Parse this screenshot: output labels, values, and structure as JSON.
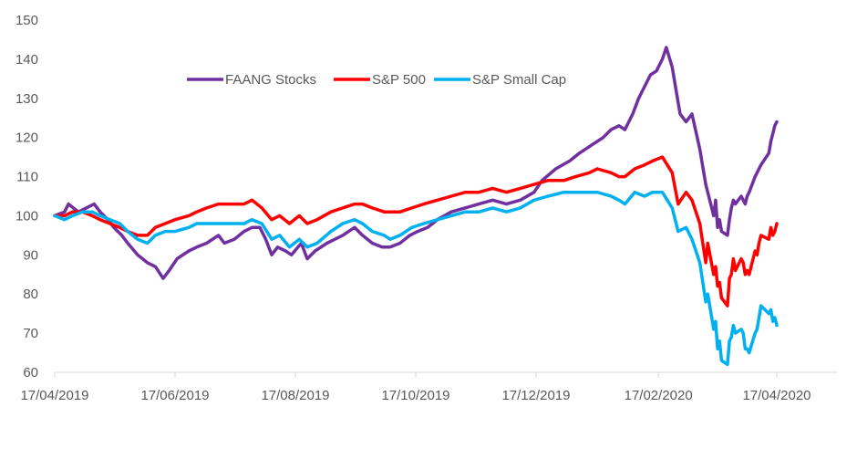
{
  "chart_data": {
    "type": "line",
    "title": "",
    "xlabel": "",
    "ylabel": "",
    "ylim": [
      60,
      150
    ],
    "y_ticks": [
      60,
      70,
      80,
      90,
      100,
      110,
      120,
      130,
      140,
      150
    ],
    "x_ticks": [
      "17/04/2019",
      "17/06/2019",
      "17/08/2019",
      "17/10/2019",
      "17/12/2019",
      "17/02/2020",
      "17/04/2020"
    ],
    "x_range": [
      "2019-04-17",
      "2020-04-30"
    ],
    "grid": false,
    "legend_position": "top-center",
    "series": [
      {
        "name": "FAANG Stocks",
        "color": "#7030A0",
        "points": [
          [
            "2019-04-17",
            100
          ],
          [
            "2019-04-22",
            101
          ],
          [
            "2019-04-24",
            103
          ],
          [
            "2019-04-29",
            101
          ],
          [
            "2019-05-03",
            102
          ],
          [
            "2019-05-07",
            103
          ],
          [
            "2019-05-10",
            101
          ],
          [
            "2019-05-14",
            99
          ],
          [
            "2019-05-17",
            97
          ],
          [
            "2019-05-21",
            95
          ],
          [
            "2019-05-24",
            93
          ],
          [
            "2019-05-29",
            90
          ],
          [
            "2019-06-03",
            88
          ],
          [
            "2019-06-07",
            87
          ],
          [
            "2019-06-11",
            84
          ],
          [
            "2019-06-14",
            86
          ],
          [
            "2019-06-18",
            89
          ],
          [
            "2019-06-24",
            91
          ],
          [
            "2019-06-28",
            92
          ],
          [
            "2019-07-03",
            93
          ],
          [
            "2019-07-09",
            95
          ],
          [
            "2019-07-12",
            93
          ],
          [
            "2019-07-17",
            94
          ],
          [
            "2019-07-22",
            96
          ],
          [
            "2019-07-26",
            97
          ],
          [
            "2019-07-30",
            97
          ],
          [
            "2019-08-02",
            94
          ],
          [
            "2019-08-05",
            90
          ],
          [
            "2019-08-08",
            92
          ],
          [
            "2019-08-12",
            91
          ],
          [
            "2019-08-15",
            90
          ],
          [
            "2019-08-20",
            93
          ],
          [
            "2019-08-23",
            89
          ],
          [
            "2019-08-27",
            91
          ],
          [
            "2019-09-02",
            93
          ],
          [
            "2019-09-06",
            94
          ],
          [
            "2019-09-10",
            95
          ],
          [
            "2019-09-16",
            97
          ],
          [
            "2019-09-20",
            95
          ],
          [
            "2019-09-25",
            93
          ],
          [
            "2019-09-30",
            92
          ],
          [
            "2019-10-04",
            92
          ],
          [
            "2019-10-09",
            93
          ],
          [
            "2019-10-14",
            95
          ],
          [
            "2019-10-18",
            96
          ],
          [
            "2019-10-23",
            97
          ],
          [
            "2019-10-28",
            99
          ],
          [
            "2019-11-04",
            101
          ],
          [
            "2019-11-11",
            102
          ],
          [
            "2019-11-18",
            103
          ],
          [
            "2019-11-25",
            104
          ],
          [
            "2019-12-02",
            103
          ],
          [
            "2019-12-09",
            104
          ],
          [
            "2019-12-16",
            106
          ],
          [
            "2019-12-20",
            109
          ],
          [
            "2019-12-27",
            112
          ],
          [
            "2020-01-03",
            114
          ],
          [
            "2020-01-08",
            116
          ],
          [
            "2020-01-14",
            118
          ],
          [
            "2020-01-20",
            120
          ],
          [
            "2020-01-24",
            122
          ],
          [
            "2020-01-28",
            123
          ],
          [
            "2020-01-31",
            122
          ],
          [
            "2020-02-04",
            126
          ],
          [
            "2020-02-07",
            130
          ],
          [
            "2020-02-10",
            133
          ],
          [
            "2020-02-13",
            136
          ],
          [
            "2020-02-16",
            137
          ],
          [
            "2020-02-19",
            140
          ],
          [
            "2020-02-21",
            143
          ],
          [
            "2020-02-24",
            138
          ],
          [
            "2020-02-26",
            132
          ],
          [
            "2020-02-28",
            126
          ],
          [
            "2020-03-02",
            124
          ],
          [
            "2020-03-05",
            126
          ],
          [
            "2020-03-09",
            117
          ],
          [
            "2020-03-12",
            108
          ],
          [
            "2020-03-16",
            100
          ],
          [
            "2020-03-17",
            104
          ],
          [
            "2020-03-18",
            97
          ],
          [
            "2020-03-19",
            99
          ],
          [
            "2020-03-20",
            96
          ],
          [
            "2020-03-23",
            95
          ],
          [
            "2020-03-24",
            99
          ],
          [
            "2020-03-25",
            102
          ],
          [
            "2020-03-26",
            104
          ],
          [
            "2020-03-27",
            103
          ],
          [
            "2020-03-30",
            105
          ],
          [
            "2020-03-31",
            104
          ],
          [
            "2020-04-01",
            103
          ],
          [
            "2020-04-02",
            105
          ],
          [
            "2020-04-03",
            106
          ],
          [
            "2020-04-06",
            110
          ],
          [
            "2020-04-07",
            111
          ],
          [
            "2020-04-08",
            112
          ],
          [
            "2020-04-09",
            113
          ],
          [
            "2020-04-13",
            116
          ],
          [
            "2020-04-14",
            119
          ],
          [
            "2020-04-15",
            121
          ],
          [
            "2020-04-16",
            123
          ],
          [
            "2020-04-17",
            124
          ]
        ]
      },
      {
        "name": "S&P 500",
        "color": "#FF0000",
        "points": [
          [
            "2019-04-17",
            100
          ],
          [
            "2019-04-22",
            100
          ],
          [
            "2019-04-26",
            101
          ],
          [
            "2019-05-01",
            101
          ],
          [
            "2019-05-06",
            100
          ],
          [
            "2019-05-10",
            99
          ],
          [
            "2019-05-15",
            98
          ],
          [
            "2019-05-20",
            97
          ],
          [
            "2019-05-24",
            96
          ],
          [
            "2019-05-29",
            95
          ],
          [
            "2019-06-03",
            95
          ],
          [
            "2019-06-07",
            97
          ],
          [
            "2019-06-12",
            98
          ],
          [
            "2019-06-17",
            99
          ],
          [
            "2019-06-24",
            100
          ],
          [
            "2019-06-28",
            101
          ],
          [
            "2019-07-03",
            102
          ],
          [
            "2019-07-09",
            103
          ],
          [
            "2019-07-15",
            103
          ],
          [
            "2019-07-22",
            103
          ],
          [
            "2019-07-26",
            104
          ],
          [
            "2019-07-31",
            102
          ],
          [
            "2019-08-05",
            99
          ],
          [
            "2019-08-09",
            100
          ],
          [
            "2019-08-14",
            98
          ],
          [
            "2019-08-19",
            100
          ],
          [
            "2019-08-23",
            98
          ],
          [
            "2019-08-28",
            99
          ],
          [
            "2019-09-04",
            101
          ],
          [
            "2019-09-10",
            102
          ],
          [
            "2019-09-16",
            103
          ],
          [
            "2019-09-20",
            103
          ],
          [
            "2019-09-25",
            102
          ],
          [
            "2019-10-01",
            101
          ],
          [
            "2019-10-04",
            101
          ],
          [
            "2019-10-09",
            101
          ],
          [
            "2019-10-15",
            102
          ],
          [
            "2019-10-21",
            103
          ],
          [
            "2019-10-28",
            104
          ],
          [
            "2019-11-04",
            105
          ],
          [
            "2019-11-11",
            106
          ],
          [
            "2019-11-18",
            106
          ],
          [
            "2019-11-25",
            107
          ],
          [
            "2019-12-02",
            106
          ],
          [
            "2019-12-09",
            107
          ],
          [
            "2019-12-16",
            108
          ],
          [
            "2019-12-23",
            109
          ],
          [
            "2019-12-31",
            109
          ],
          [
            "2020-01-06",
            110
          ],
          [
            "2020-01-13",
            111
          ],
          [
            "2020-01-17",
            112
          ],
          [
            "2020-01-24",
            111
          ],
          [
            "2020-01-28",
            110
          ],
          [
            "2020-01-31",
            110
          ],
          [
            "2020-02-05",
            112
          ],
          [
            "2020-02-10",
            113
          ],
          [
            "2020-02-14",
            114
          ],
          [
            "2020-02-19",
            115
          ],
          [
            "2020-02-24",
            111
          ],
          [
            "2020-02-27",
            103
          ],
          [
            "2020-03-02",
            106
          ],
          [
            "2020-03-05",
            104
          ],
          [
            "2020-03-09",
            98
          ],
          [
            "2020-03-12",
            88
          ],
          [
            "2020-03-13",
            93
          ],
          [
            "2020-03-16",
            85
          ],
          [
            "2020-03-17",
            87
          ],
          [
            "2020-03-18",
            82
          ],
          [
            "2020-03-19",
            83
          ],
          [
            "2020-03-20",
            79
          ],
          [
            "2020-03-23",
            77
          ],
          [
            "2020-03-24",
            84
          ],
          [
            "2020-03-25",
            85
          ],
          [
            "2020-03-26",
            89
          ],
          [
            "2020-03-27",
            86
          ],
          [
            "2020-03-30",
            89
          ],
          [
            "2020-03-31",
            88
          ],
          [
            "2020-04-01",
            85
          ],
          [
            "2020-04-02",
            86
          ],
          [
            "2020-04-03",
            85
          ],
          [
            "2020-04-06",
            91
          ],
          [
            "2020-04-07",
            90
          ],
          [
            "2020-04-08",
            93
          ],
          [
            "2020-04-09",
            95
          ],
          [
            "2020-04-13",
            94
          ],
          [
            "2020-04-14",
            97
          ],
          [
            "2020-04-15",
            95
          ],
          [
            "2020-04-16",
            96
          ],
          [
            "2020-04-17",
            98
          ]
        ]
      },
      {
        "name": "S&P Small Cap",
        "color": "#00B0F0",
        "points": [
          [
            "2019-04-17",
            100
          ],
          [
            "2019-04-22",
            99
          ],
          [
            "2019-04-26",
            100
          ],
          [
            "2019-05-01",
            101
          ],
          [
            "2019-05-06",
            101
          ],
          [
            "2019-05-10",
            100
          ],
          [
            "2019-05-15",
            99
          ],
          [
            "2019-05-20",
            98
          ],
          [
            "2019-05-24",
            96
          ],
          [
            "2019-05-29",
            94
          ],
          [
            "2019-06-03",
            93
          ],
          [
            "2019-06-07",
            95
          ],
          [
            "2019-06-12",
            96
          ],
          [
            "2019-06-17",
            96
          ],
          [
            "2019-06-24",
            97
          ],
          [
            "2019-06-28",
            98
          ],
          [
            "2019-07-03",
            98
          ],
          [
            "2019-07-09",
            98
          ],
          [
            "2019-07-15",
            98
          ],
          [
            "2019-07-22",
            98
          ],
          [
            "2019-07-26",
            99
          ],
          [
            "2019-07-31",
            98
          ],
          [
            "2019-08-05",
            94
          ],
          [
            "2019-08-09",
            95
          ],
          [
            "2019-08-14",
            92
          ],
          [
            "2019-08-19",
            94
          ],
          [
            "2019-08-23",
            92
          ],
          [
            "2019-08-28",
            93
          ],
          [
            "2019-09-04",
            96
          ],
          [
            "2019-09-10",
            98
          ],
          [
            "2019-09-16",
            99
          ],
          [
            "2019-09-20",
            98
          ],
          [
            "2019-09-25",
            96
          ],
          [
            "2019-10-01",
            95
          ],
          [
            "2019-10-04",
            94
          ],
          [
            "2019-10-09",
            95
          ],
          [
            "2019-10-15",
            97
          ],
          [
            "2019-10-21",
            98
          ],
          [
            "2019-10-28",
            99
          ],
          [
            "2019-11-04",
            100
          ],
          [
            "2019-11-11",
            101
          ],
          [
            "2019-11-18",
            101
          ],
          [
            "2019-11-25",
            102
          ],
          [
            "2019-12-02",
            101
          ],
          [
            "2019-12-09",
            102
          ],
          [
            "2019-12-16",
            104
          ],
          [
            "2019-12-23",
            105
          ],
          [
            "2019-12-31",
            106
          ],
          [
            "2020-01-06",
            106
          ],
          [
            "2020-01-13",
            106
          ],
          [
            "2020-01-17",
            106
          ],
          [
            "2020-01-24",
            105
          ],
          [
            "2020-01-28",
            104
          ],
          [
            "2020-01-31",
            103
          ],
          [
            "2020-02-05",
            106
          ],
          [
            "2020-02-10",
            105
          ],
          [
            "2020-02-14",
            106
          ],
          [
            "2020-02-19",
            106
          ],
          [
            "2020-02-24",
            102
          ],
          [
            "2020-02-27",
            96
          ],
          [
            "2020-03-02",
            97
          ],
          [
            "2020-03-05",
            94
          ],
          [
            "2020-03-09",
            88
          ],
          [
            "2020-03-12",
            78
          ],
          [
            "2020-03-13",
            80
          ],
          [
            "2020-03-16",
            71
          ],
          [
            "2020-03-17",
            73
          ],
          [
            "2020-03-18",
            66
          ],
          [
            "2020-03-19",
            68
          ],
          [
            "2020-03-20",
            63
          ],
          [
            "2020-03-23",
            62
          ],
          [
            "2020-03-24",
            68
          ],
          [
            "2020-03-25",
            69
          ],
          [
            "2020-03-26",
            72
          ],
          [
            "2020-03-27",
            70
          ],
          [
            "2020-03-30",
            71
          ],
          [
            "2020-03-31",
            70
          ],
          [
            "2020-04-01",
            66
          ],
          [
            "2020-04-02",
            66
          ],
          [
            "2020-04-03",
            65
          ],
          [
            "2020-04-06",
            70
          ],
          [
            "2020-04-07",
            71
          ],
          [
            "2020-04-08",
            74
          ],
          [
            "2020-04-09",
            77
          ],
          [
            "2020-04-13",
            75
          ],
          [
            "2020-04-14",
            76
          ],
          [
            "2020-04-15",
            73
          ],
          [
            "2020-04-16",
            74
          ],
          [
            "2020-04-17",
            72
          ]
        ]
      }
    ]
  }
}
